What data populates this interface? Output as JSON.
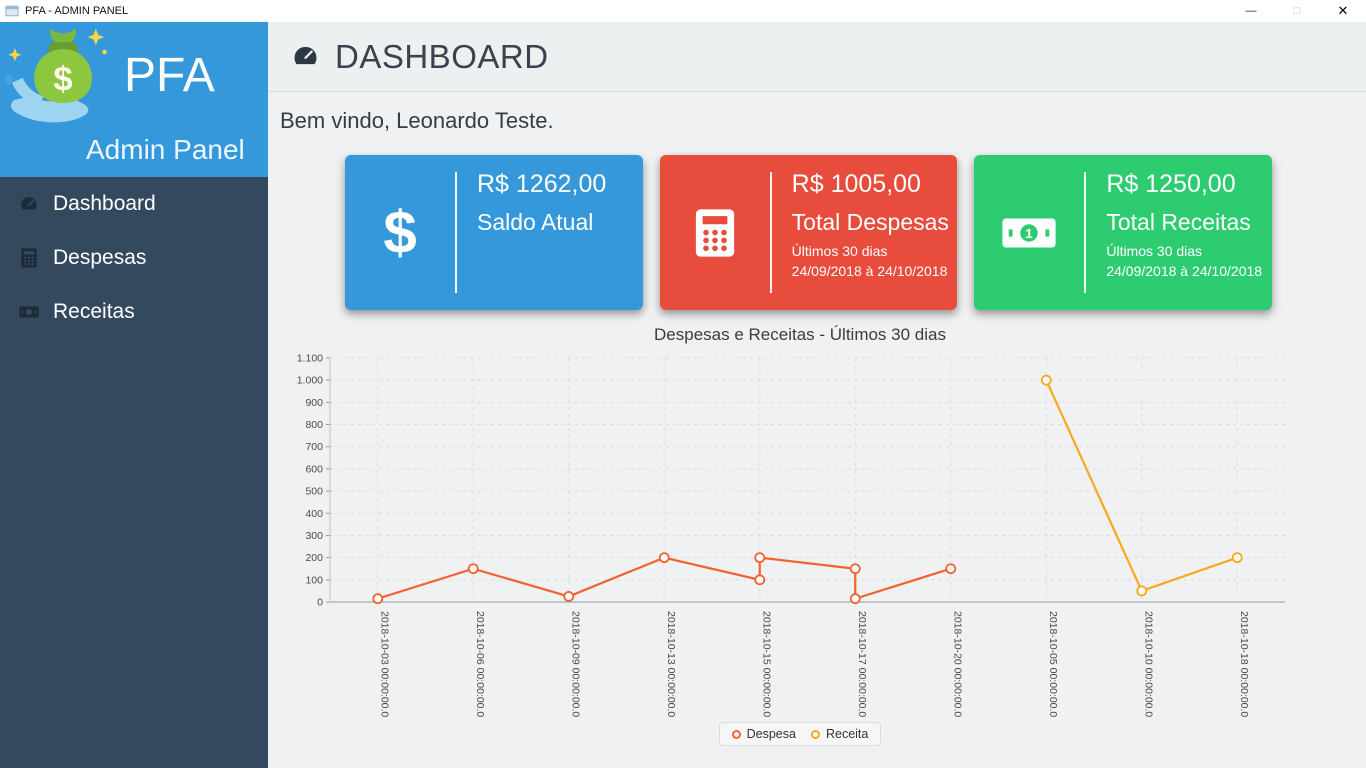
{
  "window": {
    "title": "PFA - ADMIN PANEL",
    "controls": {
      "minimize": "—",
      "maximize": "□",
      "close": "✕"
    }
  },
  "sidebar": {
    "brand": {
      "name": "PFA",
      "subtitle": "Admin Panel",
      "logo_glyph": "$"
    },
    "items": [
      {
        "label": "Dashboard",
        "icon": "gauge-icon"
      },
      {
        "label": "Despesas",
        "icon": "calculator-icon"
      },
      {
        "label": "Receitas",
        "icon": "banknote-icon"
      }
    ]
  },
  "header": {
    "title": "DASHBOARD",
    "icon": "gauge-icon"
  },
  "main": {
    "welcome": "Bem vindo, Leonardo Teste."
  },
  "cards": [
    {
      "amount": "R$ 1262,00",
      "label": "Saldo Atual",
      "color": "#3498db",
      "icon": "dollar-icon",
      "icon_glyph": "$"
    },
    {
      "amount": "R$ 1005,00",
      "label": "Total Despesas",
      "period": "Últimos 30 dias",
      "range": "24/09/2018 à 24/10/2018",
      "color": "#e74c3c",
      "icon": "calculator-icon"
    },
    {
      "amount": "R$ 1250,00",
      "label": "Total Receitas",
      "period": "Últimos 30 dias",
      "range": "24/09/2018 à 24/10/2018",
      "color": "#2ecc71",
      "icon": "banknote-icon",
      "icon_digit": "1"
    }
  ],
  "chart_data": {
    "type": "line",
    "title": "Despesas e Receitas - Últimos 30 dias",
    "categories": [
      "2018-10-03 00:00:00.0",
      "2018-10-06 00:00:00.0",
      "2018-10-09 00:00:00.0",
      "2018-10-13 00:00:00.0",
      "2018-10-15 00:00:00.0",
      "2018-10-17 00:00:00.0",
      "2018-10-20 00:00:00.0",
      "2018-10-05 00:00:00.0",
      "2018-10-10 00:00:00.0",
      "2018-10-18 00:00:00.0"
    ],
    "series": [
      {
        "name": "Despesa",
        "color": "#f3622d",
        "points": [
          [
            0,
            15
          ],
          [
            1,
            150
          ],
          [
            2,
            25
          ],
          [
            3,
            200
          ],
          [
            4,
            100
          ],
          [
            4,
            200
          ],
          [
            5,
            150
          ],
          [
            5,
            15
          ],
          [
            6,
            150
          ]
        ]
      },
      {
        "name": "Receita",
        "color": "#fba71b",
        "points": [
          [
            7,
            1000
          ],
          [
            8,
            50
          ],
          [
            9,
            200
          ]
        ]
      }
    ],
    "ylim": [
      0,
      1100
    ],
    "y_ticks": [
      "0",
      "100",
      "200",
      "300",
      "400",
      "500",
      "600",
      "700",
      "800",
      "900",
      "1.000",
      "1.100"
    ],
    "grid": "dashed",
    "legend_position": "bottom"
  }
}
